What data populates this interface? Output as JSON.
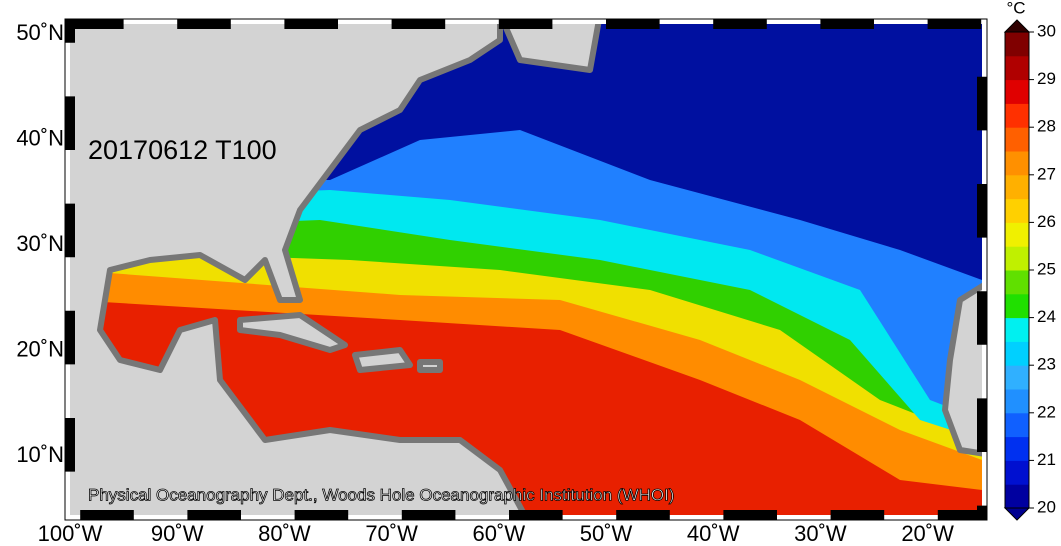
{
  "map": {
    "label": "20170612 T100",
    "credit": "Physical Oceanography Dept., Woods Hole Oceanographic Institution (WHOI)",
    "x_labels": [
      "100˚W",
      "90˚W",
      "80˚W",
      "70˚W",
      "60˚W",
      "50˚W",
      "40˚W",
      "30˚W",
      "20˚W"
    ],
    "y_labels": [
      "50˚N",
      "40˚N",
      "30˚N",
      "20˚N",
      "10˚N"
    ]
  },
  "colorbar": {
    "unit": "°C",
    "lim": [
      20,
      30
    ],
    "ticks": [
      20,
      21,
      22,
      23,
      24,
      25,
      26,
      27,
      28,
      29,
      30
    ],
    "colors": [
      "#0000a0",
      "#0010d0",
      "#0030f0",
      "#1060ff",
      "#2090ff",
      "#30b0ff",
      "#00d0ff",
      "#00f0f0",
      "#20e000",
      "#60e000",
      "#c0f000",
      "#f0f000",
      "#ffd000",
      "#ffb000",
      "#ff9000",
      "#ff6000",
      "#ff3000",
      "#e00000",
      "#b00000",
      "#800000"
    ],
    "over": "#300000",
    "under": "#000090"
  }
}
